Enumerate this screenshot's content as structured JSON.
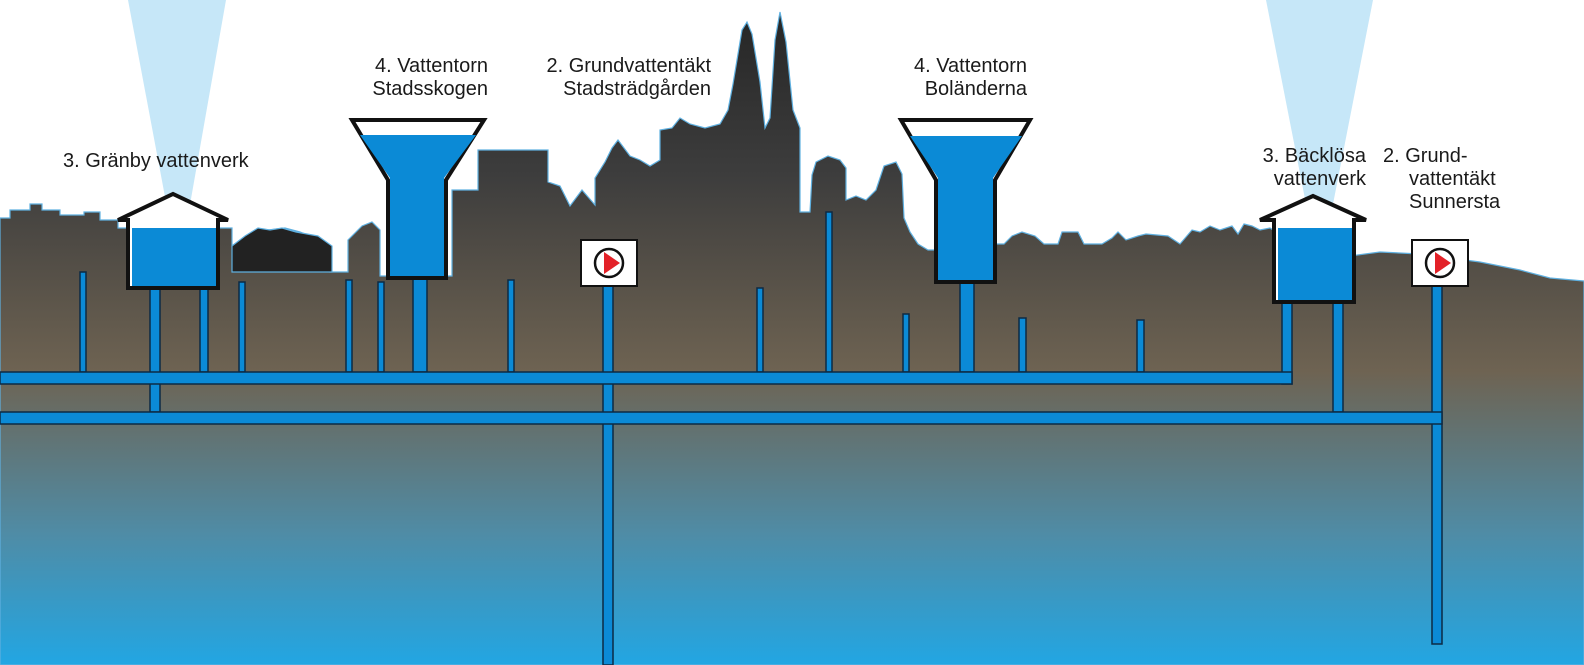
{
  "labels": {
    "granby": "3. Gränby vattenverk",
    "stadsskogen": [
      "4. Vattentorn",
      "Stadsskogen"
    ],
    "stadstradgarden": [
      "2. Grundvattentäkt",
      "Stadsträdgården"
    ],
    "bolanderna": [
      "4. Vattentorn",
      "Boländerna"
    ],
    "backlosa": [
      "3. Bäcklösa",
      "vattenverk"
    ],
    "sunnersta": [
      "2. Grund-",
      "vattentäkt",
      "Sunnersta"
    ]
  },
  "colors": {
    "sky": "#ffffff",
    "beam": "#bfe4f7",
    "skyline": "#222222",
    "skyline_outline": "#5fb0e0",
    "pipe": "#0b8ad6",
    "pipe_outline": "#0d2a44",
    "water": "#0b8ad6",
    "ground_top": "#3b3b3b",
    "ground_mid": "#6e6352",
    "ground_bottom": "#27a4dd",
    "pump_arrow": "#e32128"
  },
  "icons": {
    "pump": "pump-play-icon",
    "tower": "water-tower-icon",
    "plant": "waterworks-house-icon"
  }
}
